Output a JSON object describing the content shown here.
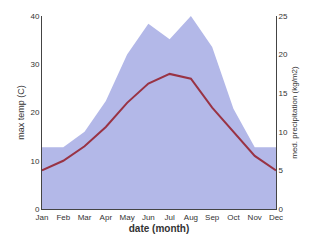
{
  "chart_data": {
    "type": "line",
    "categories": [
      "Jan",
      "Feb",
      "Mar",
      "Apr",
      "May",
      "Jun",
      "Jul",
      "Aug",
      "Sep",
      "Oct",
      "Nov",
      "Dec"
    ],
    "xlabel": "date (month)",
    "ylabel": "max temp (C)",
    "y2label": "med. precipitation (kg/m2)",
    "series": [
      {
        "type": "area",
        "axis": "y2",
        "color": "#b3b8e8",
        "values": [
          8,
          8,
          10,
          14,
          20,
          24,
          22,
          25,
          21,
          13,
          8,
          8
        ]
      },
      {
        "type": "line",
        "color": "#993344",
        "values": [
          8,
          10,
          13,
          17,
          22,
          26,
          28,
          27,
          21,
          16,
          11,
          8
        ]
      }
    ],
    "ylim": [
      0,
      40
    ],
    "yticks": [
      0,
      10,
      20,
      30,
      40
    ],
    "y2lim": [
      0,
      25
    ],
    "y2ticks": [
      0,
      5,
      10,
      15,
      20,
      25
    ],
    "grid": false
  }
}
